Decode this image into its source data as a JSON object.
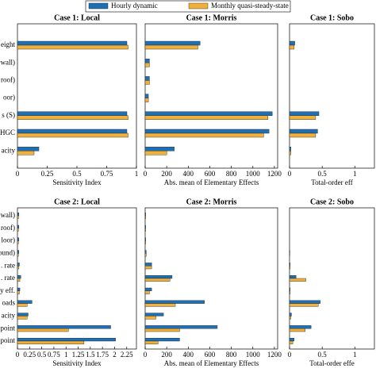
{
  "chart_data": [
    {
      "type": "hbar",
      "title": "Case 1: Local",
      "xlabel": "Sensitivity Index",
      "categories": [
        "eight",
        "wall)",
        "roof)",
        "oor)",
        "s (S)",
        "HGC",
        "acity"
      ],
      "series": [
        {
          "name": "Hourly dynamic",
          "color": "#1f6fb4",
          "values": [
            0.92,
            0,
            0,
            0,
            0.92,
            0.92,
            0.18
          ]
        },
        {
          "name": "Monthly quasi-steady-state",
          "color": "#f0b13c",
          "values": [
            0.93,
            0,
            0,
            0,
            0.93,
            0.93,
            0.14
          ]
        }
      ],
      "xlim": [
        0,
        1
      ],
      "xticks": [
        0,
        0.25,
        0.5,
        0.75,
        1
      ]
    },
    {
      "type": "hbar",
      "title": "Case 1: Morris",
      "xlabel": "Abs. mean of Elementary Effects",
      "categories": [
        "eight",
        "wall)",
        "roof)",
        "oor)",
        "s (S)",
        "HGC",
        "acity"
      ],
      "series": [
        {
          "name": "Hourly dynamic",
          "color": "#1f6fb4",
          "values": [
            510,
            40,
            40,
            30,
            1180,
            1150,
            270
          ]
        },
        {
          "name": "Monthly quasi-steady-state",
          "color": "#f0b13c",
          "values": [
            490,
            40,
            40,
            30,
            1140,
            1100,
            200
          ]
        }
      ],
      "xlim": [
        0,
        1230
      ],
      "xticks": [
        0,
        200,
        400,
        600,
        800,
        1000,
        1200
      ]
    },
    {
      "type": "hbar",
      "title": "Case 1: Sobo",
      "xlabel": "Total-order eff",
      "categories": [
        "eight",
        "wall)",
        "roof)",
        "oor)",
        "s (S)",
        "HGC",
        "acity"
      ],
      "series": [
        {
          "name": "Hourly dynamic",
          "color": "#1f6fb4",
          "values": [
            0.08,
            0,
            0,
            0,
            0.45,
            0.43,
            0.02
          ]
        },
        {
          "name": "Monthly quasi-steady-state",
          "color": "#f0b13c",
          "values": [
            0.07,
            0,
            0,
            0,
            0.4,
            0.4,
            0.02
          ]
        }
      ],
      "xlim": [
        0,
        1.3
      ],
      "xticks": [
        0,
        0.5,
        1
      ]
    },
    {
      "type": "hbar",
      "title": "Case 2: Local",
      "xlabel": "Sensitivity Index",
      "categories": [
        "wall)",
        "roof)",
        "loor)",
        "ound)",
        ". rate",
        ". rate",
        "y eff.",
        "oads",
        "acity",
        "point",
        "point"
      ],
      "series": [
        {
          "name": "Hourly dynamic",
          "color": "#1f6fb4",
          "values": [
            0.03,
            0.03,
            0.03,
            0.03,
            0.04,
            0.07,
            0.05,
            0.3,
            0.22,
            1.92,
            2.02
          ]
        },
        {
          "name": "Monthly quasi-steady-state",
          "color": "#f0b13c",
          "values": [
            0.02,
            0.02,
            0.02,
            0.02,
            0.03,
            0.05,
            0.04,
            0.2,
            0.2,
            1.05,
            1.37
          ]
        }
      ],
      "xlim": [
        0,
        2.45
      ],
      "xticks": [
        0,
        0.25,
        0.5,
        0.75,
        1,
        1.25,
        1.5,
        1.75,
        2,
        2.25
      ]
    },
    {
      "type": "hbar",
      "title": "Case 2: Morris",
      "xlabel": "Abs. mean of Elementary Effects",
      "categories": [
        "wall)",
        "roof)",
        "loor)",
        "ound)",
        ". rate",
        ". rate",
        "y eff.",
        "oads",
        "acity",
        "point",
        "point"
      ],
      "series": [
        {
          "name": "Hourly dynamic",
          "color": "#1f6fb4",
          "values": [
            5,
            5,
            5,
            10,
            60,
            250,
            60,
            550,
            170,
            670,
            320
          ]
        },
        {
          "name": "Monthly quasi-steady-state",
          "color": "#f0b13c",
          "values": [
            5,
            5,
            5,
            10,
            60,
            230,
            40,
            280,
            100,
            320,
            120
          ]
        }
      ],
      "xlim": [
        0,
        1230
      ],
      "xticks": [
        0,
        200,
        400,
        600,
        800,
        1000,
        1200
      ]
    },
    {
      "type": "hbar",
      "title": "Case 2: Sobo",
      "xlabel": "Total-order effe",
      "categories": [
        "wall)",
        "roof)",
        "loor)",
        "ound)",
        ". rate",
        ". rate",
        "y eff.",
        "oads",
        "acity",
        "point",
        "point"
      ],
      "series": [
        {
          "name": "Hourly dynamic",
          "color": "#1f6fb4",
          "values": [
            0,
            0,
            0,
            0.005,
            0.01,
            0.1,
            0.01,
            0.47,
            0.03,
            0.33,
            0.07
          ]
        },
        {
          "name": "Monthly quasi-steady-state",
          "color": "#f0b13c",
          "values": [
            0,
            0,
            0,
            0.005,
            0.01,
            0.25,
            0.01,
            0.44,
            0.02,
            0.24,
            0.05
          ]
        }
      ],
      "xlim": [
        0,
        1.3
      ],
      "xticks": [
        0,
        0.5,
        1
      ]
    }
  ]
}
